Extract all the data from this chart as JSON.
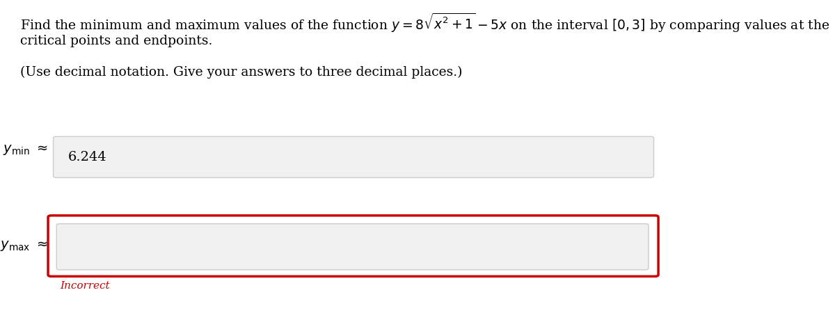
{
  "title_line1": "Find the minimum and maximum values of the function $y = 8\\sqrt{x^2 + 1} - 5x$ on the interval $[0, 3]$ by comparing values at the",
  "title_line2": "critical points and endpoints.",
  "subtitle": "(Use decimal notation. Give your answers to three decimal places.)",
  "ymin_label": "$y_{\\mathrm{min}}$",
  "ymax_label": "$y_{\\mathrm{max}}$",
  "approx_symbol": "$\\approx$",
  "ymin_value": "6.244",
  "ymax_value": "",
  "incorrect_text": "Incorrect",
  "bg_color": "#ffffff",
  "box_fill_color": "#f0f0f0",
  "box_border_color": "#cccccc",
  "red_border_color": "#cc0000",
  "incorrect_color": "#cc0000",
  "text_color": "#000000",
  "title_fontsize": 13.5,
  "subtitle_fontsize": 13.5,
  "label_fontsize": 14,
  "value_fontsize": 14,
  "incorrect_fontsize": 11
}
